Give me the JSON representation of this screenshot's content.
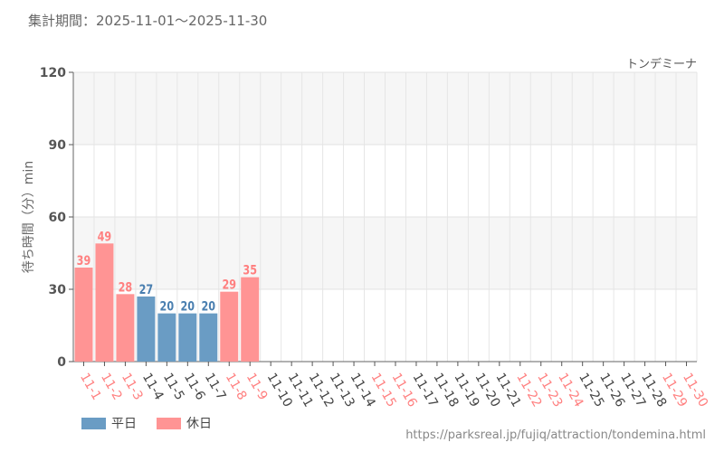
{
  "period_label": "集計期間：2025-11-01～2025-11-30",
  "attraction_name": "トンデミーナ",
  "source_url": "https://parksreal.jp/fujiq/attraction/tondemina.html",
  "colors": {
    "weekday": "#6a9cc4",
    "holiday": "#ff9494",
    "weekday_label": "#444444",
    "holiday_label": "#ff8080"
  },
  "chart_data": {
    "type": "bar",
    "ylabel": "待ち時間（分）min",
    "ylim": [
      0,
      120
    ],
    "yticks": [
      "0",
      "30",
      "60",
      "90",
      "120"
    ],
    "grid": true,
    "legend_placement": "bottom-left",
    "legend": [
      {
        "name": "平日",
        "key": "weekday"
      },
      {
        "name": "休日",
        "key": "holiday"
      }
    ],
    "categories": [
      "11-1",
      "11-2",
      "11-3",
      "11-4",
      "11-5",
      "11-6",
      "11-7",
      "11-8",
      "11-9",
      "11-10",
      "11-11",
      "11-12",
      "11-13",
      "11-14",
      "11-15",
      "11-16",
      "11-17",
      "11-18",
      "11-19",
      "11-20",
      "11-21",
      "11-22",
      "11-23",
      "11-24",
      "11-25",
      "11-26",
      "11-27",
      "11-28",
      "11-29",
      "11-30"
    ],
    "holiday": [
      true,
      true,
      true,
      false,
      false,
      false,
      false,
      true,
      true,
      false,
      false,
      false,
      false,
      false,
      true,
      true,
      false,
      false,
      false,
      false,
      false,
      true,
      true,
      true,
      false,
      false,
      false,
      false,
      true,
      true
    ],
    "values": [
      39,
      49,
      28,
      27,
      20,
      20,
      20,
      29,
      35,
      null,
      null,
      null,
      null,
      null,
      null,
      null,
      null,
      null,
      null,
      null,
      null,
      null,
      null,
      null,
      null,
      null,
      null,
      null,
      null,
      null
    ]
  }
}
